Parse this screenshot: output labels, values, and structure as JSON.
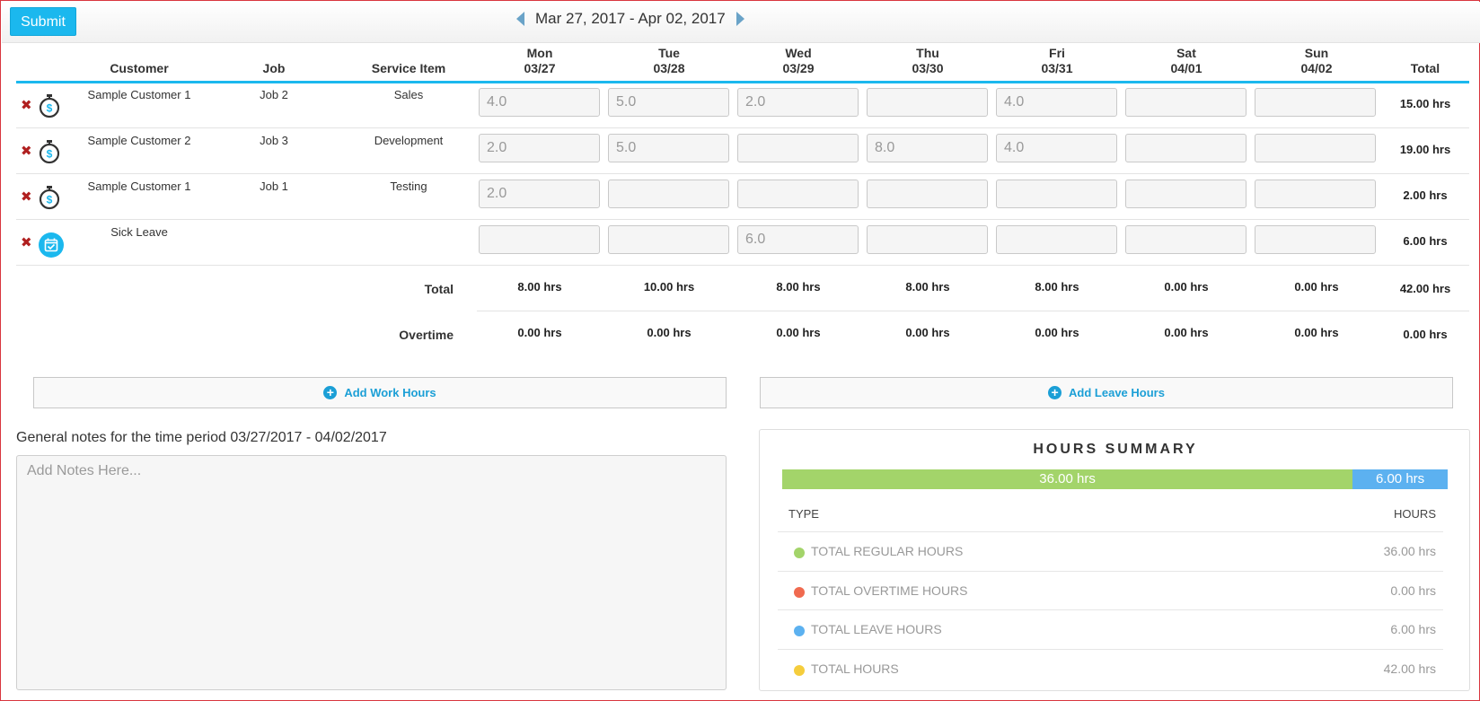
{
  "toolbar": {
    "submit_label": "Submit"
  },
  "period": {
    "label": "Mar 27, 2017 - Apr 02, 2017"
  },
  "columns": {
    "customer": "Customer",
    "job": "Job",
    "service_item": "Service Item",
    "total": "Total",
    "days": [
      {
        "name": "Mon",
        "date": "03/27"
      },
      {
        "name": "Tue",
        "date": "03/28"
      },
      {
        "name": "Wed",
        "date": "03/29"
      },
      {
        "name": "Thu",
        "date": "03/30"
      },
      {
        "name": "Fri",
        "date": "03/31"
      },
      {
        "name": "Sat",
        "date": "04/01"
      },
      {
        "name": "Sun",
        "date": "04/02"
      }
    ]
  },
  "rows": [
    {
      "customer": "Sample Customer 1",
      "job": "Job 2",
      "service": "Sales",
      "hours": [
        "4.0",
        "5.0",
        "2.0",
        "",
        "4.0",
        "",
        ""
      ],
      "total": "15.00 hrs",
      "icon": "stopwatch-dollar-icon"
    },
    {
      "customer": "Sample Customer 2",
      "job": "Job 3",
      "service": "Development",
      "hours": [
        "2.0",
        "5.0",
        "",
        "8.0",
        "4.0",
        "",
        ""
      ],
      "total": "19.00 hrs",
      "icon": "stopwatch-dollar-icon"
    },
    {
      "customer": "Sample Customer 1",
      "job": "Job 1",
      "service": "Testing",
      "hours": [
        "2.0",
        "",
        "",
        "",
        "",
        "",
        ""
      ],
      "total": "2.00 hrs",
      "icon": "stopwatch-dollar-icon"
    },
    {
      "customer": "Sick Leave",
      "job": "",
      "service": "",
      "hours": [
        "",
        "",
        "6.0",
        "",
        "",
        "",
        ""
      ],
      "total": "6.00 hrs",
      "icon": "calendar-check-icon"
    }
  ],
  "totals": {
    "label": "Total",
    "values": [
      "8.00 hrs",
      "10.00 hrs",
      "8.00 hrs",
      "8.00 hrs",
      "8.00 hrs",
      "0.00 hrs",
      "0.00 hrs"
    ],
    "grand": "42.00 hrs"
  },
  "overtime": {
    "label": "Overtime",
    "values": [
      "0.00 hrs",
      "0.00 hrs",
      "0.00 hrs",
      "0.00 hrs",
      "0.00 hrs",
      "0.00 hrs",
      "0.00 hrs"
    ],
    "grand": "0.00 hrs"
  },
  "actions": {
    "add_work": "Add Work Hours",
    "add_leave": "Add Leave Hours"
  },
  "notes": {
    "label": "General notes for the time period 03/27/2017 - 04/02/2017",
    "placeholder": "Add Notes Here..."
  },
  "summary": {
    "title": "HOURS SUMMARY",
    "bar": [
      {
        "label": "36.00 hrs",
        "value": 36,
        "color": "#a3d46a"
      },
      {
        "label": "6.00 hrs",
        "value": 6,
        "color": "#5cb1f0"
      }
    ],
    "type_header": "TYPE",
    "hours_header": "HOURS",
    "items": [
      {
        "label": "TOTAL REGULAR HOURS",
        "value": "36.00 hrs",
        "color": "#a3d46a"
      },
      {
        "label": "TOTAL OVERTIME HOURS",
        "value": "0.00 hrs",
        "color": "#f06a4f"
      },
      {
        "label": "TOTAL LEAVE HOURS",
        "value": "6.00 hrs",
        "color": "#5cb1f0"
      },
      {
        "label": "TOTAL HOURS",
        "value": "42.00 hrs",
        "color": "#f5cd3c"
      }
    ]
  },
  "colors": {
    "accent": "#1bb8ee",
    "delete": "#b02020",
    "link": "#1b9fd6"
  }
}
